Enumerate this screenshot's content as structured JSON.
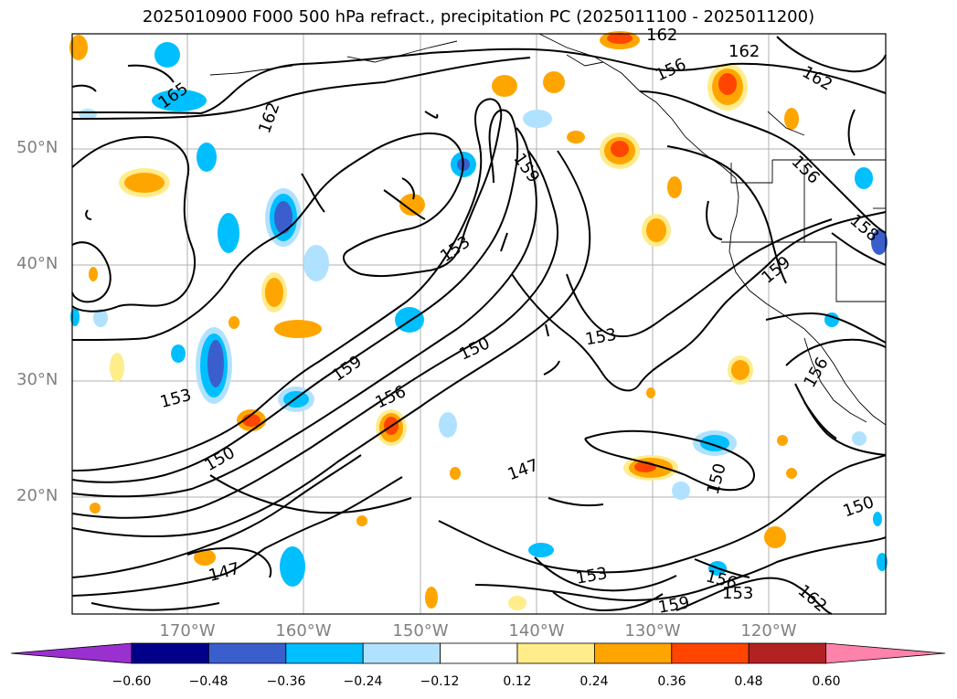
{
  "title": "2025010900 F000 500 hPa refract., precipitation PC (2025011100 - 2025011200)",
  "lat_labels": [
    "50°N",
    "40°N",
    "30°N",
    "20°N"
  ],
  "lon_labels": [
    "170°W",
    "160°W",
    "150°W",
    "140°W",
    "130°W",
    "120°W"
  ],
  "contour_labels": [
    "165",
    "162",
    "162",
    "162",
    "156",
    "162",
    "159",
    "153",
    "156",
    "158",
    "159",
    "153",
    "159",
    "150",
    "153",
    "156",
    "150",
    "147",
    "150",
    "147",
    "150",
    "156",
    "153",
    "153",
    "156",
    "159",
    "162"
  ],
  "colorbar": {
    "colors": [
      "#9b30d0",
      "#00008b",
      "#3a5fcd",
      "#00bfff",
      "#b0e2ff",
      "#ffffff",
      "#ffec8b",
      "#ffa500",
      "#ff4500",
      "#b22222",
      "#ff82ab"
    ],
    "ticks": [
      "−0.60",
      "−0.48",
      "−0.36",
      "−0.24",
      "−0.12",
      "0.12",
      "0.24",
      "0.36",
      "0.48",
      "0.60"
    ]
  }
}
